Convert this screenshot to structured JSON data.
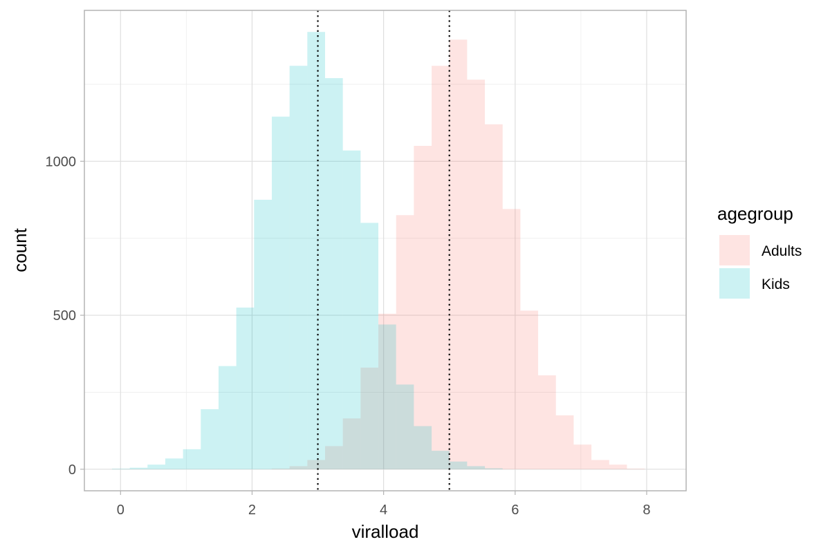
{
  "chart_data": {
    "type": "histogram",
    "title": "",
    "xlabel": "viralload",
    "ylabel": "count",
    "xlim": [
      -0.55,
      8.6
    ],
    "ylim": [
      -70,
      1490
    ],
    "x_ticks": [
      0,
      2,
      4,
      6,
      8
    ],
    "y_ticks": [
      0,
      500,
      1000
    ],
    "x_minor_gridlines": [
      1,
      3,
      5,
      7
    ],
    "y_minor_gridlines": [
      250,
      750,
      1250
    ],
    "grid": true,
    "bin_width": 0.27,
    "bins_start": -0.13,
    "legend": {
      "title": "agegroup",
      "position": "right",
      "items": [
        {
          "label": "Adults",
          "color": "#F8766D"
        },
        {
          "label": "Kids",
          "color": "#00BFC4"
        }
      ]
    },
    "fill_opacity": 0.2,
    "series": [
      {
        "name": "Adults",
        "color": "#F8766D",
        "counts": [
          0,
          0,
          0,
          0,
          0,
          0,
          0,
          0,
          0,
          2,
          10,
          30,
          75,
          165,
          330,
          505,
          825,
          1050,
          1310,
          1395,
          1265,
          1120,
          845,
          515,
          305,
          175,
          80,
          30,
          15,
          2
        ]
      },
      {
        "name": "Kids",
        "color": "#00BFC4",
        "counts": [
          2,
          5,
          15,
          35,
          65,
          195,
          335,
          525,
          875,
          1145,
          1310,
          1420,
          1270,
          1035,
          800,
          470,
          275,
          140,
          60,
          25,
          10,
          3,
          0,
          0,
          0,
          0,
          0,
          0,
          0,
          0
        ]
      }
    ],
    "reference_lines": [
      {
        "x": 3,
        "style": "dotted",
        "color": "#000000"
      },
      {
        "x": 5,
        "style": "dotted",
        "color": "#000000"
      }
    ]
  }
}
